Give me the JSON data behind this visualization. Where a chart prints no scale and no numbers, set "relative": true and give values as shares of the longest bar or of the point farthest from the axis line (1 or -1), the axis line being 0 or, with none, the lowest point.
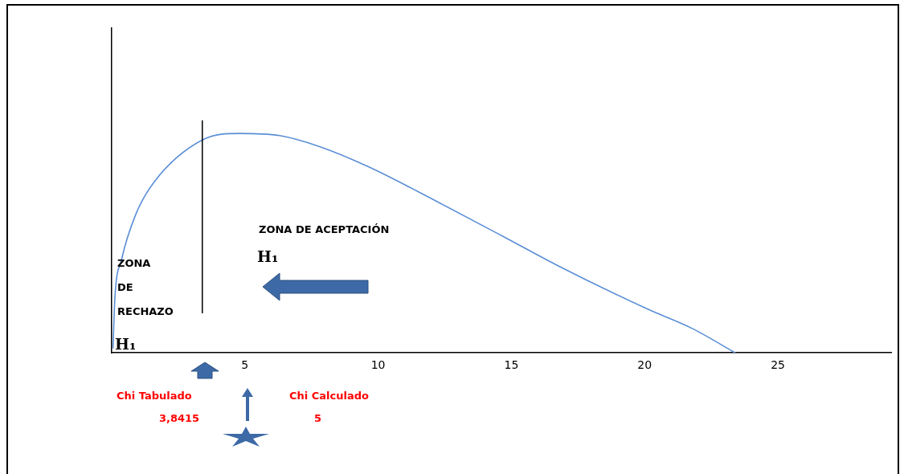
{
  "chart_data": {
    "type": "line",
    "relative": true,
    "xlim": [
      0,
      29.25
    ],
    "xticks": [
      5,
      10,
      15,
      20,
      25
    ],
    "grid": false,
    "legend": false,
    "marker": "none",
    "line_style": "solid",
    "series": [
      {
        "color": "#5b8fd6",
        "x": [
          0.05,
          0.12,
          0.36,
          0.9,
          1.6,
          3.4,
          4.8,
          6.3,
          7.8,
          9.6,
          12.2,
          14.7,
          16.7,
          20.1,
          21.8,
          23.4
        ],
        "values": [
          0.02,
          0.25,
          0.42,
          0.63,
          0.78,
          0.97,
          1,
          0.99,
          0.94,
          0.85,
          0.69,
          0.53,
          0.4,
          0.2,
          0.11,
          0
        ]
      }
    ],
    "ref_lines": [
      {
        "axis": "x",
        "value": 3.4,
        "color": "#000000"
      }
    ],
    "annotations": [
      "ZONA DE ACEPTACIÓN",
      "H₁",
      "ZONA DE RECHAZO",
      "H₁",
      "Chi Tabulado",
      "3,8415",
      "Chi Calculado",
      "5"
    ]
  }
}
